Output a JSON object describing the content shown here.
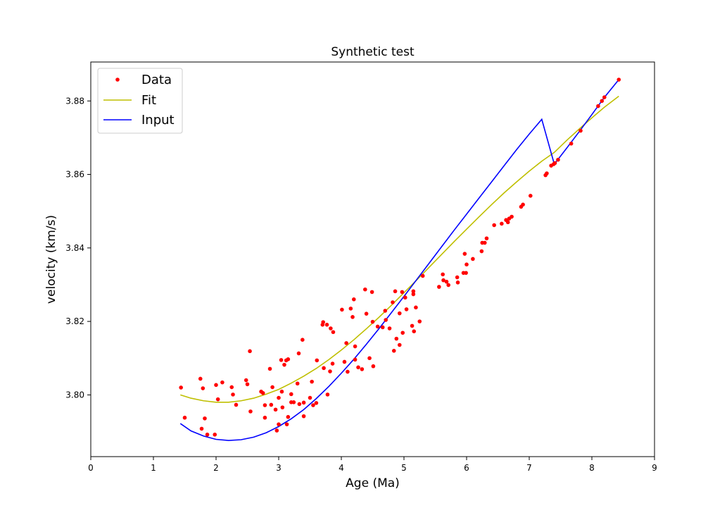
{
  "chart_data": {
    "type": "scatter",
    "title": "Synthetic test",
    "xlabel": "Age (Ma)",
    "ylabel": "velocity (km/s)",
    "xlim": [
      0,
      9
    ],
    "ylim": [
      3.7832,
      3.8906
    ],
    "xticks": [
      0,
      1,
      2,
      3,
      4,
      5,
      6,
      7,
      8,
      9
    ],
    "yticks": [
      3.8,
      3.82,
      3.84,
      3.86,
      3.88
    ],
    "ytick_labels": [
      "3.80",
      "3.82",
      "3.84",
      "3.86",
      "3.88"
    ],
    "grid": false,
    "legend": {
      "position": "top-left",
      "entries": [
        {
          "label": "Data",
          "style": "points",
          "color": "#ff0000"
        },
        {
          "label": "Fit",
          "style": "line",
          "color": "#bfbf00"
        },
        {
          "label": "Input",
          "style": "line",
          "color": "#0000ff"
        }
      ]
    },
    "series": [
      {
        "name": "Data",
        "style": "points",
        "color": "#ff0000",
        "points": [
          [
            1.44,
            3.802
          ],
          [
            1.5,
            3.7938
          ],
          [
            1.75,
            3.8044
          ],
          [
            1.77,
            3.7908
          ],
          [
            1.79,
            3.8018
          ],
          [
            1.82,
            3.7936
          ],
          [
            1.86,
            3.7892
          ],
          [
            1.98,
            3.7892
          ],
          [
            2.0,
            3.8027
          ],
          [
            2.03,
            3.7988
          ],
          [
            2.1,
            3.8034
          ],
          [
            2.25,
            3.8021
          ],
          [
            2.27,
            3.8001
          ],
          [
            2.32,
            3.7973
          ],
          [
            2.48,
            3.804
          ],
          [
            2.5,
            3.8029
          ],
          [
            2.54,
            3.8119
          ],
          [
            2.55,
            3.7955
          ],
          [
            2.72,
            3.8009
          ],
          [
            2.75,
            3.8005
          ],
          [
            2.78,
            3.7972
          ],
          [
            2.78,
            3.7938
          ],
          [
            2.86,
            3.8071
          ],
          [
            2.88,
            3.7973
          ],
          [
            2.9,
            3.8021
          ],
          [
            2.95,
            3.796
          ],
          [
            2.97,
            3.7903
          ],
          [
            3.0,
            3.7992
          ],
          [
            3.0,
            3.792
          ],
          [
            3.04,
            3.8095
          ],
          [
            3.05,
            3.8009
          ],
          [
            3.06,
            3.7966
          ],
          [
            3.09,
            3.8082
          ],
          [
            3.12,
            3.8094
          ],
          [
            3.13,
            3.792
          ],
          [
            3.15,
            3.8097
          ],
          [
            3.15,
            3.794
          ],
          [
            3.2,
            3.8002
          ],
          [
            3.2,
            3.798
          ],
          [
            3.24,
            3.798
          ],
          [
            3.3,
            3.8031
          ],
          [
            3.32,
            3.8113
          ],
          [
            3.33,
            3.7975
          ],
          [
            3.38,
            3.815
          ],
          [
            3.4,
            3.7979
          ],
          [
            3.4,
            3.7942
          ],
          [
            3.5,
            3.7992
          ],
          [
            3.53,
            3.8036
          ],
          [
            3.55,
            3.7972
          ],
          [
            3.6,
            3.7978
          ],
          [
            3.61,
            3.8094
          ],
          [
            3.7,
            3.8191
          ],
          [
            3.71,
            3.8198
          ],
          [
            3.72,
            3.8073
          ],
          [
            3.77,
            3.8191
          ],
          [
            3.78,
            3.8001
          ],
          [
            3.82,
            3.8064
          ],
          [
            3.83,
            3.8181
          ],
          [
            3.86,
            3.8085
          ],
          [
            3.87,
            3.8171
          ],
          [
            4.01,
            3.8232
          ],
          [
            4.05,
            3.809
          ],
          [
            4.08,
            3.8141
          ],
          [
            4.1,
            3.8063
          ],
          [
            4.15,
            3.8235
          ],
          [
            4.18,
            3.8212
          ],
          [
            4.2,
            3.826
          ],
          [
            4.22,
            3.8132
          ],
          [
            4.22,
            3.8096
          ],
          [
            4.27,
            3.8075
          ],
          [
            4.33,
            3.807
          ],
          [
            4.38,
            3.8287
          ],
          [
            4.4,
            3.8221
          ],
          [
            4.45,
            3.81
          ],
          [
            4.49,
            3.828
          ],
          [
            4.5,
            3.8199
          ],
          [
            4.51,
            3.8078
          ],
          [
            4.58,
            3.8186
          ],
          [
            4.66,
            3.8184
          ],
          [
            4.7,
            3.8229
          ],
          [
            4.71,
            3.8204
          ],
          [
            4.77,
            3.8181
          ],
          [
            4.82,
            3.8252
          ],
          [
            4.84,
            3.812
          ],
          [
            4.86,
            3.8282
          ],
          [
            4.88,
            3.8153
          ],
          [
            4.93,
            3.8222
          ],
          [
            4.93,
            3.8136
          ],
          [
            4.97,
            3.828
          ],
          [
            4.98,
            3.8169
          ],
          [
            5.02,
            3.8265
          ],
          [
            5.04,
            3.8233
          ],
          [
            5.13,
            3.8188
          ],
          [
            5.15,
            3.8282
          ],
          [
            5.15,
            3.8274
          ],
          [
            5.16,
            3.8173
          ],
          [
            5.19,
            3.8238
          ],
          [
            5.25,
            3.82
          ],
          [
            5.3,
            3.8324
          ],
          [
            5.56,
            3.8294
          ],
          [
            5.62,
            3.8328
          ],
          [
            5.63,
            3.8312
          ],
          [
            5.68,
            3.8308
          ],
          [
            5.71,
            3.8299
          ],
          [
            5.85,
            3.832
          ],
          [
            5.86,
            3.8306
          ],
          [
            5.95,
            3.8332
          ],
          [
            5.97,
            3.8384
          ],
          [
            5.99,
            3.8332
          ],
          [
            6.0,
            3.8355
          ],
          [
            6.1,
            3.837
          ],
          [
            6.24,
            3.8391
          ],
          [
            6.25,
            3.8414
          ],
          [
            6.29,
            3.8414
          ],
          [
            6.32,
            3.8426
          ],
          [
            6.44,
            3.8462
          ],
          [
            6.56,
            3.8466
          ],
          [
            6.63,
            3.8476
          ],
          [
            6.66,
            3.847
          ],
          [
            6.68,
            3.848
          ],
          [
            6.72,
            3.8485
          ],
          [
            6.87,
            3.8512
          ],
          [
            6.9,
            3.8518
          ],
          [
            7.02,
            3.8542
          ],
          [
            7.26,
            3.8598
          ],
          [
            7.28,
            3.8603
          ],
          [
            7.35,
            3.8624
          ],
          [
            7.39,
            3.8628
          ],
          [
            7.41,
            3.8631
          ],
          [
            7.46,
            3.864
          ],
          [
            7.67,
            3.8684
          ],
          [
            7.82,
            3.8719
          ],
          [
            8.1,
            3.8786
          ],
          [
            8.16,
            3.88
          ],
          [
            8.2,
            3.881
          ],
          [
            8.43,
            3.8858
          ]
        ]
      },
      {
        "name": "Fit",
        "style": "line",
        "color": "#bfbf00",
        "points": [
          [
            1.43,
            3.8
          ],
          [
            1.6,
            3.7991
          ],
          [
            1.8,
            3.7984
          ],
          [
            2.0,
            3.798
          ],
          [
            2.2,
            3.798
          ],
          [
            2.4,
            3.7984
          ],
          [
            2.6,
            3.7991
          ],
          [
            2.8,
            3.8002
          ],
          [
            3.0,
            3.8015
          ],
          [
            3.2,
            3.8032
          ],
          [
            3.4,
            3.8051
          ],
          [
            3.6,
            3.8072
          ],
          [
            3.8,
            3.8096
          ],
          [
            4.0,
            3.8122
          ],
          [
            4.2,
            3.815
          ],
          [
            4.4,
            3.818
          ],
          [
            4.6,
            3.8211
          ],
          [
            4.8,
            3.8244
          ],
          [
            5.0,
            3.8278
          ],
          [
            5.2,
            3.8312
          ],
          [
            5.4,
            3.8347
          ],
          [
            5.6,
            3.8382
          ],
          [
            5.8,
            3.8417
          ],
          [
            6.0,
            3.8451
          ],
          [
            6.2,
            3.8485
          ],
          [
            6.4,
            3.8518
          ],
          [
            6.6,
            3.855
          ],
          [
            6.8,
            3.858
          ],
          [
            7.0,
            3.8609
          ],
          [
            7.2,
            3.8636
          ],
          [
            7.4,
            3.866
          ],
          [
            7.6,
            3.8693
          ],
          [
            7.8,
            3.8724
          ],
          [
            8.0,
            3.8754
          ],
          [
            8.2,
            3.8783
          ],
          [
            8.43,
            3.8813
          ]
        ]
      },
      {
        "name": "Input",
        "style": "line",
        "color": "#0000ff",
        "points": [
          [
            1.43,
            3.7922
          ],
          [
            1.6,
            3.7902
          ],
          [
            1.8,
            3.7888
          ],
          [
            2.0,
            3.7879
          ],
          [
            2.2,
            3.7876
          ],
          [
            2.4,
            3.7878
          ],
          [
            2.6,
            3.7885
          ],
          [
            2.8,
            3.7897
          ],
          [
            3.0,
            3.7914
          ],
          [
            3.2,
            3.7935
          ],
          [
            3.4,
            3.796
          ],
          [
            3.6,
            3.799
          ],
          [
            3.8,
            3.8023
          ],
          [
            4.0,
            3.8059
          ],
          [
            4.2,
            3.8097
          ],
          [
            4.4,
            3.8138
          ],
          [
            4.6,
            3.818
          ],
          [
            4.8,
            3.8224
          ],
          [
            5.0,
            3.8268
          ],
          [
            5.2,
            3.8313
          ],
          [
            5.4,
            3.8358
          ],
          [
            5.6,
            3.8403
          ],
          [
            5.8,
            3.8448
          ],
          [
            6.0,
            3.8492
          ],
          [
            6.2,
            3.8536
          ],
          [
            6.4,
            3.858
          ],
          [
            6.6,
            3.8624
          ],
          [
            6.8,
            3.8668
          ],
          [
            7.0,
            3.871
          ],
          [
            7.2,
            3.875
          ],
          [
            7.4,
            3.8628
          ],
          [
            7.6,
            3.8672
          ],
          [
            7.8,
            3.8717
          ],
          [
            8.0,
            3.8763
          ],
          [
            8.2,
            3.881
          ],
          [
            8.43,
            3.8858
          ]
        ]
      }
    ]
  }
}
